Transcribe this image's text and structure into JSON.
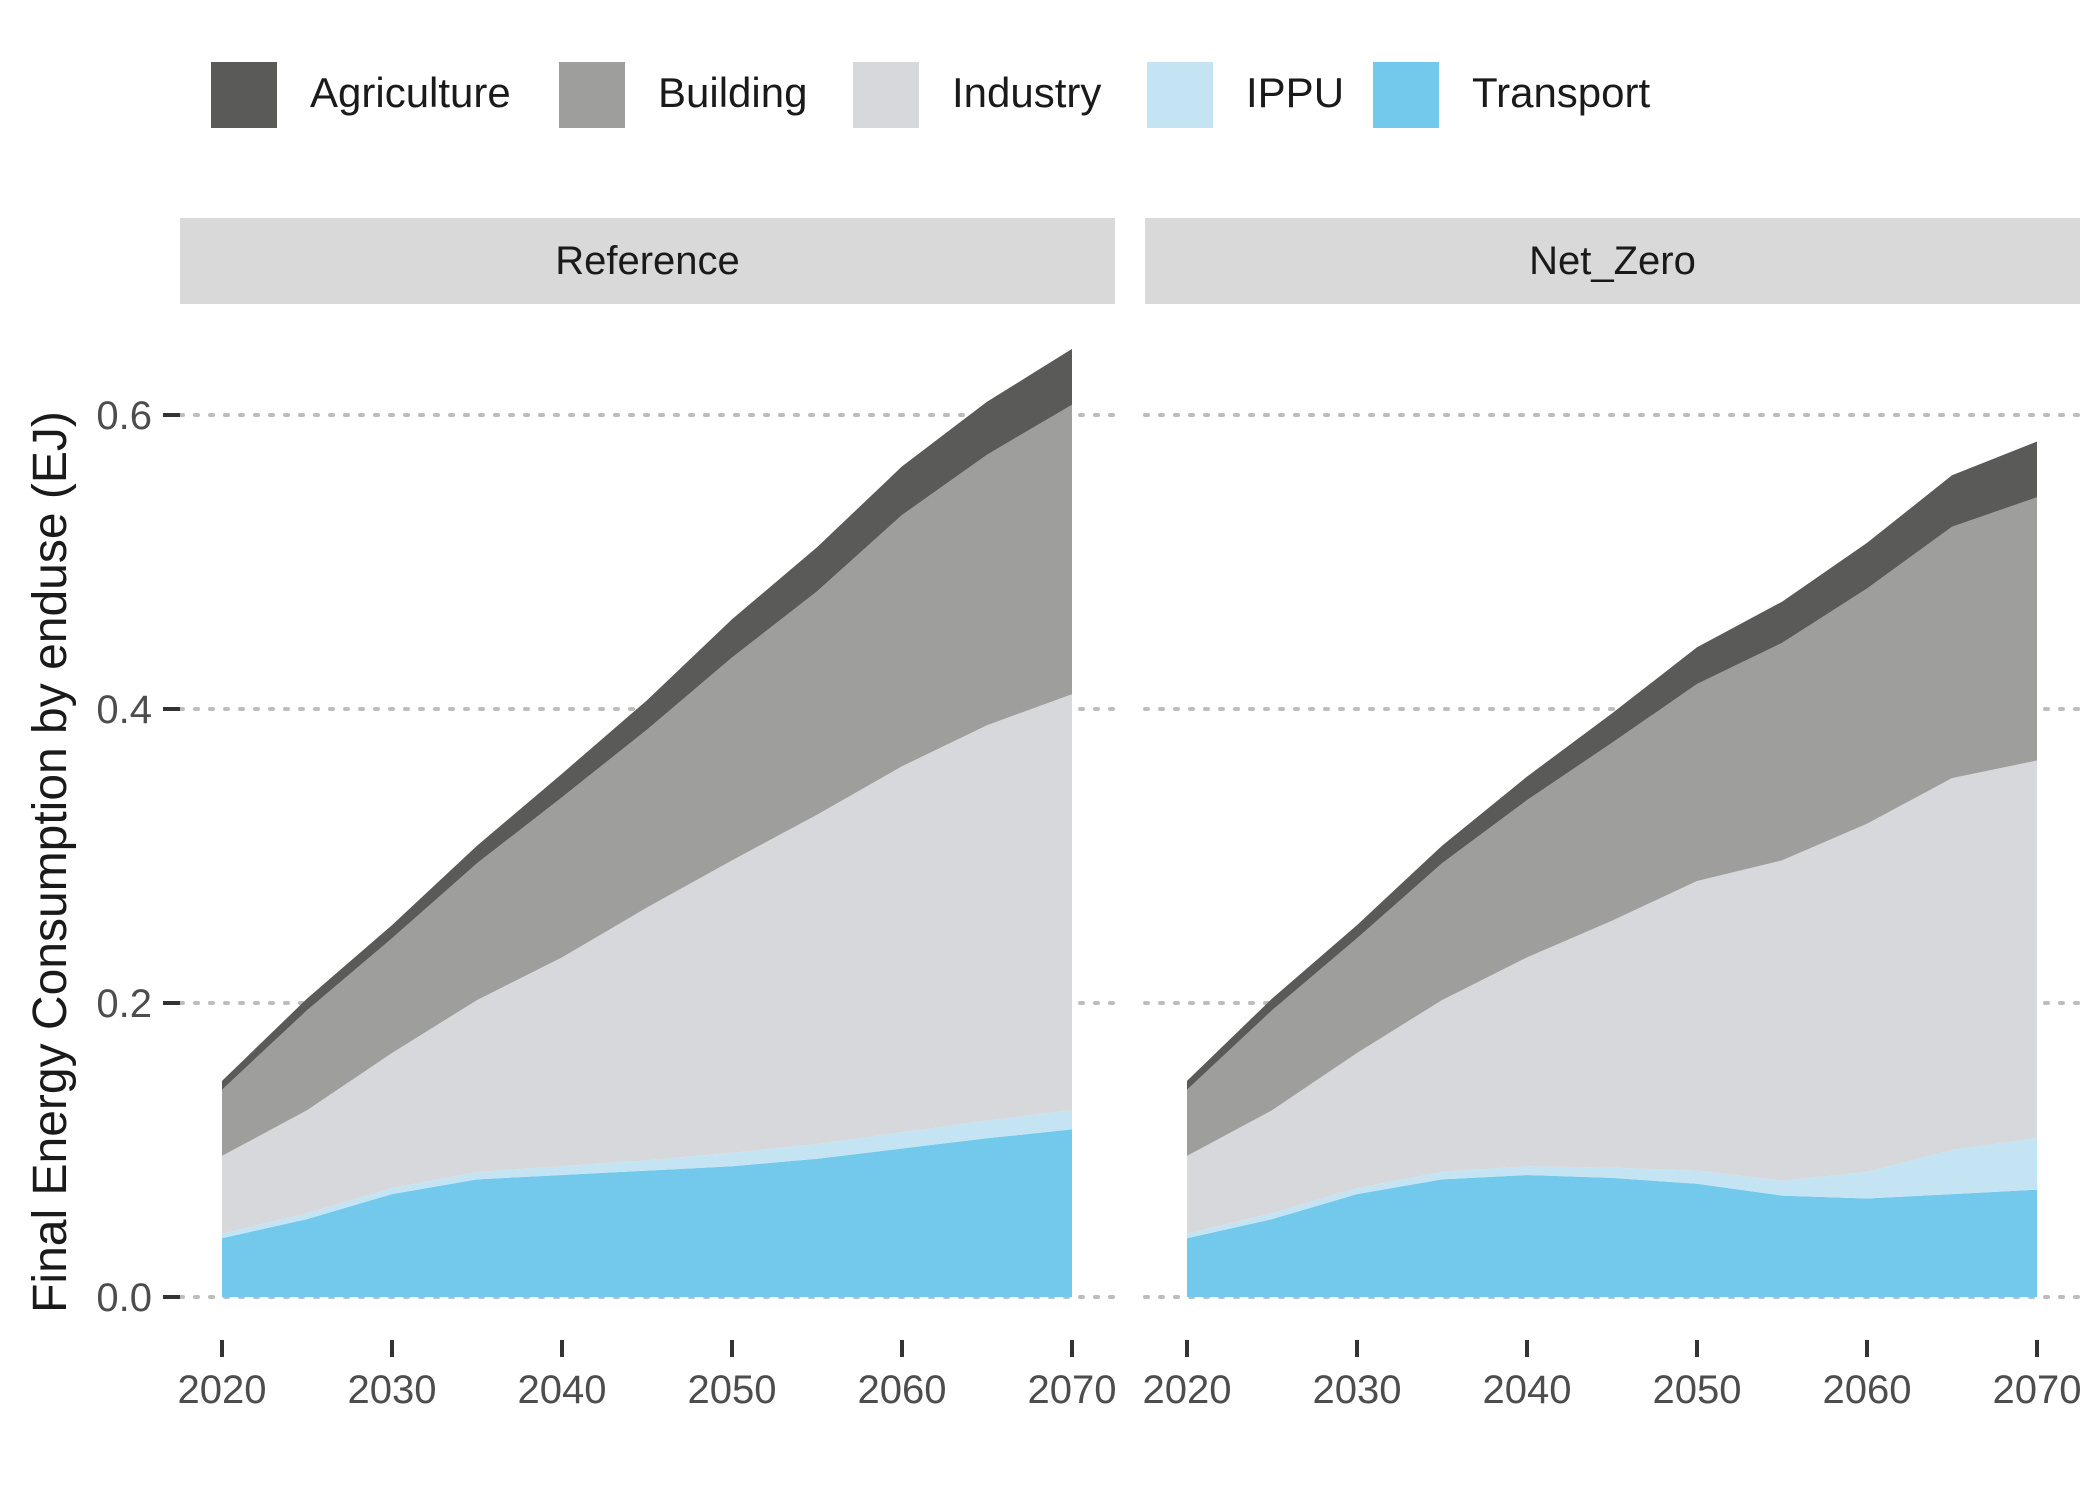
{
  "legend": [
    "Agriculture",
    "Building",
    "Industry",
    "IPPU",
    "Transport"
  ],
  "colors": {
    "Agriculture": "#5a5a58",
    "Building": "#9e9e9c",
    "Industry": "#d7d8dc",
    "IPPU": "#c4e4f4",
    "Transport": "#72c9ec"
  },
  "chart_data": {
    "type": "area",
    "stacked": true,
    "facets": [
      "Reference",
      "Net_Zero"
    ],
    "ylabel": "Final Energy Consumption by enduse (EJ)",
    "xlabel": "",
    "xlim": [
      2020,
      2070
    ],
    "ylim": [
      0,
      0.65
    ],
    "x_ticks": [
      2020,
      2030,
      2040,
      2050,
      2060,
      2070
    ],
    "y_ticks": [
      0.0,
      0.2,
      0.4,
      0.6
    ],
    "y_tick_labels": [
      "0.0",
      "0.2",
      "0.4",
      "0.6"
    ],
    "grid": "horizontal dotted",
    "legend_position": "top",
    "stack_order": [
      "Transport",
      "IPPU",
      "Industry",
      "Building",
      "Agriculture"
    ],
    "panels": [
      {
        "name": "Reference",
        "x": [
          2020,
          2025,
          2030,
          2035,
          2040,
          2045,
          2050,
          2055,
          2060,
          2065,
          2070
        ],
        "series": [
          {
            "name": "Transport",
            "values": [
              0.04,
              0.053,
              0.07,
              0.08,
              0.083,
              0.086,
              0.089,
              0.094,
              0.101,
              0.108,
              0.114
            ]
          },
          {
            "name": "IPPU",
            "values": [
              0.003,
              0.004,
              0.004,
              0.005,
              0.006,
              0.007,
              0.009,
              0.01,
              0.011,
              0.012,
              0.013
            ]
          },
          {
            "name": "Industry",
            "values": [
              0.053,
              0.07,
              0.092,
              0.117,
              0.142,
              0.172,
              0.199,
              0.224,
              0.249,
              0.269,
              0.283
            ]
          },
          {
            "name": "Building",
            "values": [
              0.045,
              0.068,
              0.078,
              0.093,
              0.109,
              0.121,
              0.138,
              0.152,
              0.171,
              0.184,
              0.197
            ]
          },
          {
            "name": "Agriculture",
            "values": [
              0.006,
              0.008,
              0.009,
              0.012,
              0.016,
              0.02,
              0.026,
              0.03,
              0.033,
              0.036,
              0.038
            ]
          }
        ]
      },
      {
        "name": "Net_Zero",
        "x": [
          2020,
          2025,
          2030,
          2035,
          2040,
          2045,
          2050,
          2055,
          2060,
          2065,
          2070
        ],
        "series": [
          {
            "name": "Transport",
            "values": [
              0.04,
              0.053,
              0.07,
              0.08,
              0.083,
              0.081,
              0.077,
              0.069,
              0.067,
              0.07,
              0.073
            ]
          },
          {
            "name": "IPPU",
            "values": [
              0.003,
              0.004,
              0.004,
              0.005,
              0.006,
              0.007,
              0.009,
              0.01,
              0.018,
              0.03,
              0.035
            ]
          },
          {
            "name": "Industry",
            "values": [
              0.053,
              0.07,
              0.092,
              0.117,
              0.142,
              0.168,
              0.197,
              0.218,
              0.237,
              0.253,
              0.257
            ]
          },
          {
            "name": "Building",
            "values": [
              0.045,
              0.068,
              0.078,
              0.093,
              0.107,
              0.121,
              0.134,
              0.148,
              0.16,
              0.171,
              0.179
            ]
          },
          {
            "name": "Agriculture",
            "values": [
              0.006,
              0.008,
              0.009,
              0.012,
              0.016,
              0.02,
              0.025,
              0.028,
              0.031,
              0.035,
              0.038
            ]
          }
        ]
      }
    ]
  }
}
